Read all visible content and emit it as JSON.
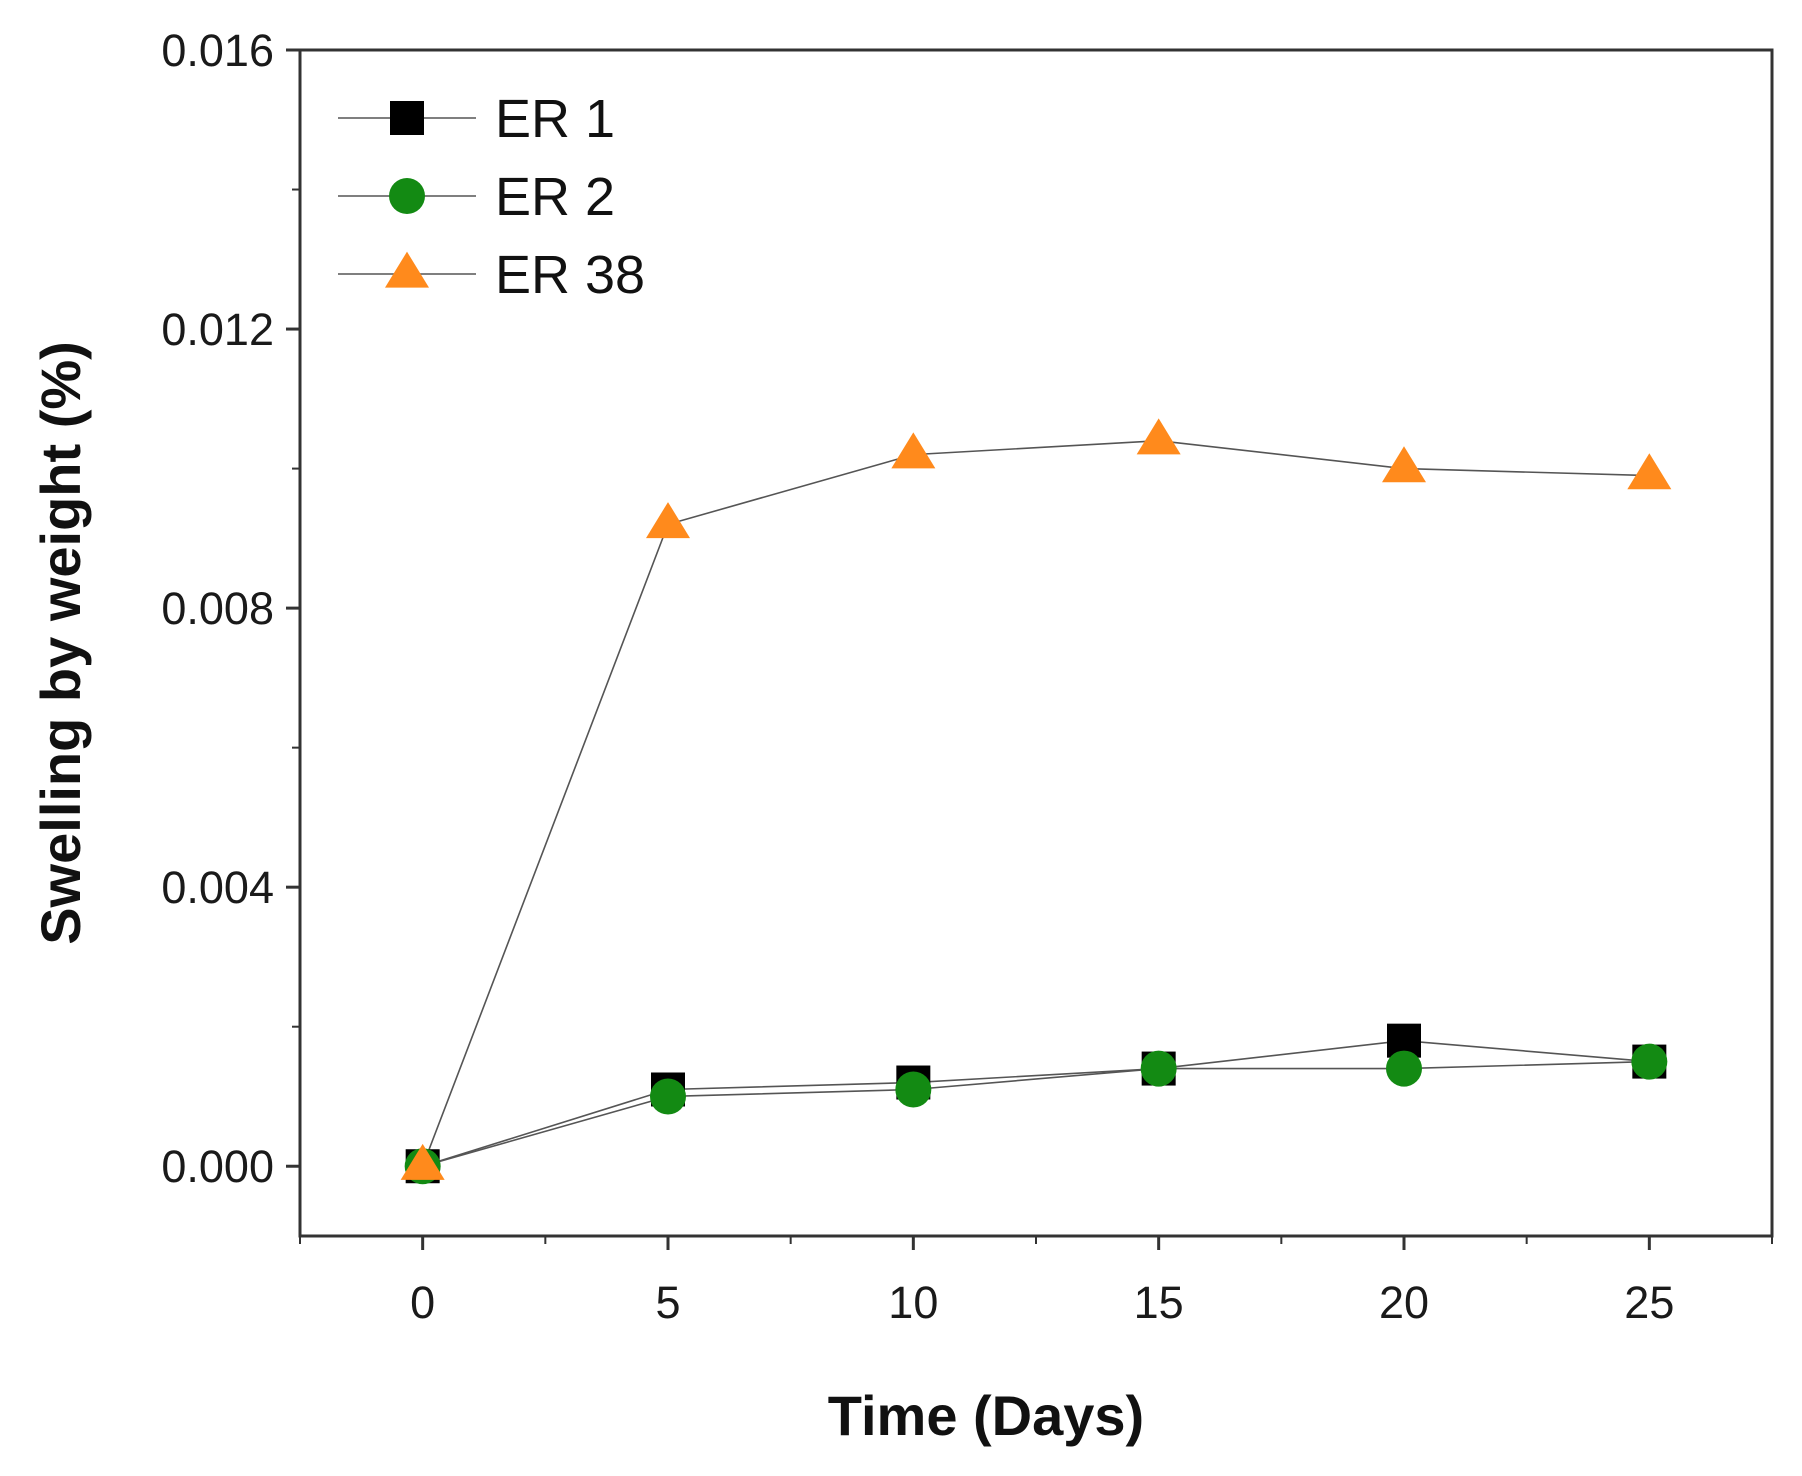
{
  "chart_data": {
    "type": "line",
    "title": "",
    "xlabel": "Time (Days)",
    "ylabel": "Swelling by weight (%)",
    "xlim": [
      -2.5,
      27.5
    ],
    "ylim": [
      -0.001,
      0.016
    ],
    "x_ticks": [
      0,
      5,
      10,
      15,
      20,
      25
    ],
    "x_tick_labels": [
      "0",
      "5",
      "10",
      "15",
      "20",
      "25"
    ],
    "y_ticks": [
      0,
      0.004,
      0.008,
      0.012,
      0.016
    ],
    "y_tick_labels": [
      "0.000",
      "0.004",
      "0.008",
      "0.012",
      "0.016"
    ],
    "grid": false,
    "legend_position": "top-left",
    "x": [
      0,
      5,
      10,
      15,
      20,
      25
    ],
    "series": [
      {
        "name": "ER 1",
        "marker": "square",
        "color": "#000000",
        "values": [
          0.0,
          0.0011,
          0.0012,
          0.0014,
          0.0018,
          0.0015
        ]
      },
      {
        "name": "ER 2",
        "marker": "circle",
        "color": "#138a13",
        "values": [
          0.0,
          0.001,
          0.0011,
          0.0014,
          0.0014,
          0.0015
        ]
      },
      {
        "name": "ER 38",
        "marker": "triangle",
        "color": "#ff8a1c",
        "values": [
          0.0,
          0.0092,
          0.0102,
          0.0104,
          0.01,
          0.0099
        ]
      }
    ]
  }
}
